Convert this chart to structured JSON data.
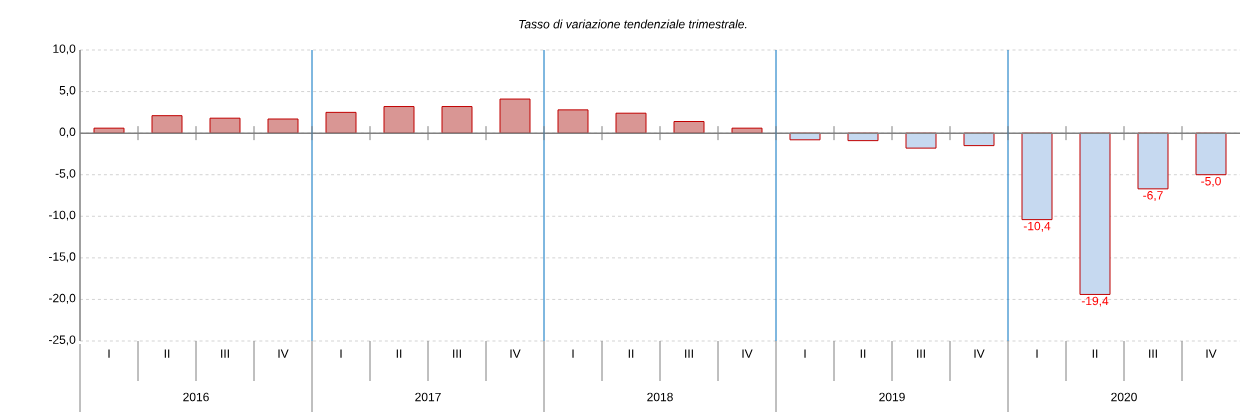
{
  "chart_data": {
    "type": "bar",
    "title": "Tasso di variazione tendenziale trimestrale.",
    "categories": [
      "I",
      "II",
      "III",
      "IV",
      "I",
      "II",
      "III",
      "IV",
      "I",
      "II",
      "III",
      "IV",
      "I",
      "II",
      "III",
      "IV",
      "I",
      "II",
      "III",
      "IV"
    ],
    "values": [
      0.6,
      2.1,
      1.8,
      1.7,
      2.5,
      3.2,
      3.2,
      4.1,
      2.8,
      2.4,
      1.4,
      0.6,
      -0.8,
      -0.9,
      -1.8,
      -1.5,
      -10.4,
      -19.4,
      -6.7,
      -5.0
    ],
    "colors": [
      "#d99694",
      "#d99694",
      "#d99694",
      "#d99694",
      "#d99694",
      "#d99694",
      "#d99694",
      "#d99694",
      "#d99694",
      "#d99694",
      "#d99694",
      "#d99694",
      "#c6d9f0",
      "#c6d9f0",
      "#c6d9f0",
      "#c6d9f0",
      "#c6d9f0",
      "#c6d9f0",
      "#c6d9f0",
      "#c6d9f0"
    ],
    "value_labels": [
      null,
      null,
      null,
      null,
      null,
      null,
      null,
      null,
      null,
      null,
      null,
      null,
      null,
      null,
      null,
      null,
      "-10,4",
      "-19,4",
      "-6,7",
      "-5,0"
    ],
    "ylim": [
      -25,
      10
    ],
    "yticks": [
      {
        "value": -25,
        "label": "-25,0"
      },
      {
        "value": -20,
        "label": "-20,0"
      },
      {
        "value": -15,
        "label": "-15,0"
      },
      {
        "value": -10,
        "label": "-10,0"
      },
      {
        "value": -5,
        "label": "-5,0"
      },
      {
        "value": 0,
        "label": "0,0"
      },
      {
        "value": 5,
        "label": "5,0"
      },
      {
        "value": 10,
        "label": "10,0"
      }
    ],
    "grid": "y",
    "annotations": [
      "2016",
      "2017",
      "2018",
      "2019",
      "2020"
    ]
  }
}
